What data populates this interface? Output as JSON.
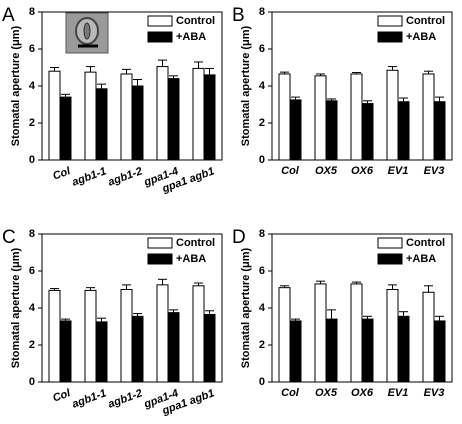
{
  "chart_data": [
    {
      "type": "bar",
      "label": "A",
      "ylabel": "Stomatal aperture (μm)",
      "tick_rotation": -20,
      "categories": [
        "Col",
        "agb1-1",
        "agb1-2",
        "gpa1-4",
        "gpa1 agb1"
      ],
      "series": [
        {
          "name": "Control",
          "color": "#ffffff",
          "values": [
            4.8,
            4.75,
            4.65,
            5.05,
            4.95
          ],
          "errors": [
            0.2,
            0.3,
            0.25,
            0.35,
            0.35
          ]
        },
        {
          "name": "+ABA",
          "color": "#000000",
          "values": [
            3.4,
            3.85,
            4.0,
            4.4,
            4.6
          ],
          "errors": [
            0.15,
            0.25,
            0.35,
            0.15,
            0.35
          ]
        }
      ],
      "ylim": [
        0,
        8
      ],
      "yticks": [
        0,
        2,
        4,
        6,
        8
      ]
    },
    {
      "type": "bar",
      "label": "B",
      "ylabel": "Stomatal aperture (μm)",
      "tick_rotation": 0,
      "categories": [
        "Col",
        "OX5",
        "OX6",
        "EV1",
        "EV3"
      ],
      "series": [
        {
          "name": "Control",
          "color": "#ffffff",
          "values": [
            4.65,
            4.55,
            4.65,
            4.85,
            4.65
          ],
          "errors": [
            0.1,
            0.1,
            0.08,
            0.2,
            0.15
          ]
        },
        {
          "name": "+ABA",
          "color": "#000000",
          "values": [
            3.25,
            3.2,
            3.05,
            3.15,
            3.15
          ],
          "errors": [
            0.15,
            0.1,
            0.15,
            0.2,
            0.25
          ]
        }
      ],
      "ylim": [
        0,
        8
      ],
      "yticks": [
        0,
        2,
        4,
        6,
        8
      ]
    },
    {
      "type": "bar",
      "label": "C",
      "ylabel": "Stomatal aperture (μm)",
      "tick_rotation": -20,
      "categories": [
        "Col",
        "agb1-1",
        "agb1-2",
        "gpa1-4",
        "gpa1 agb1"
      ],
      "series": [
        {
          "name": "Control",
          "color": "#ffffff",
          "values": [
            4.95,
            4.95,
            5.0,
            5.25,
            5.2
          ],
          "errors": [
            0.1,
            0.15,
            0.25,
            0.3,
            0.15
          ]
        },
        {
          "name": "+ABA",
          "color": "#000000",
          "values": [
            3.3,
            3.25,
            3.55,
            3.75,
            3.65
          ],
          "errors": [
            0.1,
            0.2,
            0.15,
            0.15,
            0.2
          ]
        }
      ],
      "ylim": [
        0,
        8
      ],
      "yticks": [
        0,
        2,
        4,
        6,
        8
      ]
    },
    {
      "type": "bar",
      "label": "D",
      "ylabel": "Stomatal aperture (μm)",
      "tick_rotation": 0,
      "categories": [
        "Col",
        "OX5",
        "OX6",
        "EV1",
        "EV3"
      ],
      "series": [
        {
          "name": "Control",
          "color": "#ffffff",
          "values": [
            5.1,
            5.3,
            5.3,
            5.0,
            4.85
          ],
          "errors": [
            0.1,
            0.15,
            0.1,
            0.25,
            0.35
          ]
        },
        {
          "name": "+ABA",
          "color": "#000000",
          "values": [
            3.3,
            3.4,
            3.4,
            3.55,
            3.3
          ],
          "errors": [
            0.1,
            0.5,
            0.15,
            0.25,
            0.25
          ]
        }
      ],
      "ylim": [
        0,
        8
      ],
      "yticks": [
        0,
        2,
        4,
        6,
        8
      ]
    }
  ]
}
